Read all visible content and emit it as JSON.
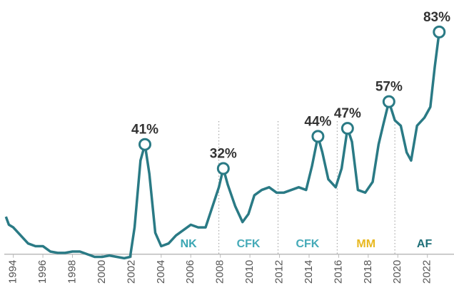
{
  "chart_data": {
    "type": "line",
    "x": [
      1993.5,
      1993.7,
      1994.0,
      1994.5,
      1995.0,
      1995.5,
      1996.0,
      1996.5,
      1997.0,
      1997.5,
      1998.0,
      1998.5,
      1999.0,
      1999.5,
      2000.0,
      2000.5,
      2001.0,
      2001.5,
      2001.9,
      2002.2,
      2002.6,
      2002.9,
      2003.2,
      2003.6,
      2004.0,
      2004.5,
      2005.0,
      2005.5,
      2006.0,
      2006.5,
      2007.0,
      2007.6,
      2007.9,
      2008.2,
      2008.5,
      2009.0,
      2009.5,
      2009.9,
      2010.3,
      2010.8,
      2011.3,
      2011.8,
      2012.3,
      2012.8,
      2013.3,
      2013.8,
      2014.2,
      2014.6,
      2014.9,
      2015.3,
      2015.8,
      2016.2,
      2016.6,
      2016.9,
      2017.3,
      2017.8,
      2018.3,
      2018.7,
      2019.0,
      2019.4,
      2019.8,
      2020.2,
      2020.6,
      2020.9,
      2021.3,
      2021.8,
      2022.2,
      2022.5,
      2022.8
    ],
    "series": [
      {
        "color": "#2a7a85",
        "values": [
          14,
          11,
          10,
          7,
          4,
          3,
          3,
          1,
          0.5,
          0.5,
          1,
          1,
          0,
          -1,
          -1,
          -0.5,
          -1,
          -1.5,
          -1,
          10,
          35,
          41,
          30,
          8,
          3,
          4,
          7,
          9,
          11,
          10,
          10,
          20,
          25,
          32,
          26,
          18,
          12,
          15,
          22,
          24,
          25,
          23,
          23,
          24,
          25,
          24,
          33,
          44,
          38,
          28,
          25,
          32,
          47,
          42,
          24,
          23,
          27,
          41,
          48,
          57,
          50,
          48,
          38,
          35,
          48,
          51,
          55,
          70,
          83
        ]
      }
    ],
    "annotations": [
      {
        "x": 2002.9,
        "value": 41,
        "label": "41%"
      },
      {
        "x": 2008.2,
        "value": 32,
        "label": "32%"
      },
      {
        "x": 2014.6,
        "value": 44,
        "label": "44%"
      },
      {
        "x": 2016.6,
        "value": 47,
        "label": "47%"
      },
      {
        "x": 2019.4,
        "value": 57,
        "label": "57%"
      },
      {
        "x": 2022.8,
        "value": 83,
        "label": "83%"
      }
    ],
    "periods": [
      {
        "name": "NK",
        "start": 2003.8,
        "end": 2007.9,
        "color": "#3aa6b3"
      },
      {
        "name": "CFK",
        "start": 2007.9,
        "end": 2011.9,
        "color": "#45aab8"
      },
      {
        "name": "CFK",
        "start": 2011.9,
        "end": 2015.9,
        "color": "#45aab8"
      },
      {
        "name": "MM",
        "start": 2015.9,
        "end": 2019.8,
        "color": "#e8b820"
      },
      {
        "name": "AF",
        "start": 2019.8,
        "end": 2023.8,
        "color": "#1e6f78"
      }
    ],
    "xlim": [
      1993.1,
      2023.8
    ],
    "xticks": [
      1994,
      1996,
      1998,
      2000,
      2002,
      2004,
      2006,
      2008,
      2010,
      2012,
      2014,
      2016,
      2018,
      2020,
      2022
    ],
    "ylim": [
      -3,
      90
    ]
  }
}
